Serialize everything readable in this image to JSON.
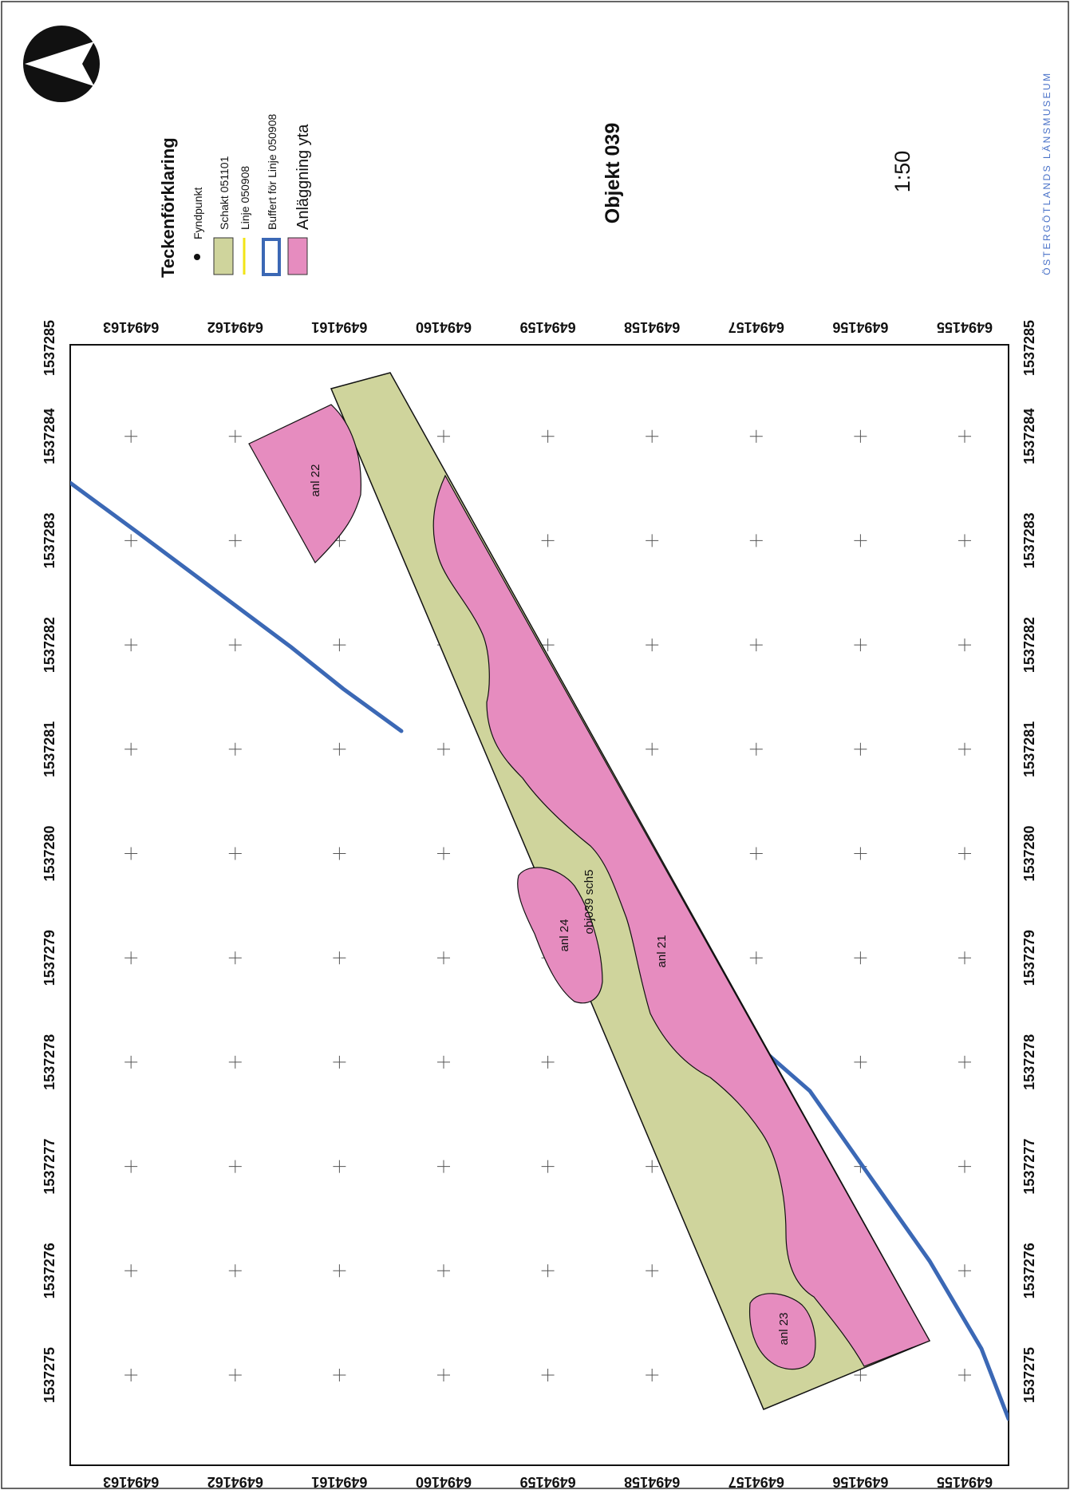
{
  "map": {
    "title": "Objekt 039",
    "scale": "1:50",
    "organisation": "ÖSTERGÖTLANDS LÄNSMUSEUM",
    "north_arrow": "north-arrow-icon",
    "x_ticks": [
      "1537275",
      "1537276",
      "1537277",
      "1537278",
      "1537279",
      "1537280",
      "1537281",
      "1537282",
      "1537283",
      "1537284",
      "1537285"
    ],
    "y_ticks": [
      "6494155",
      "6494156",
      "6494157",
      "6494158",
      "6494159",
      "6494160",
      "6494161",
      "6494162",
      "6494163"
    ],
    "colors": {
      "schakt": "#cfd49c",
      "anlaggning": "#e68cbf",
      "buffert": "#3b68b5",
      "linje": "#f2e416"
    }
  },
  "legend": {
    "title": "Teckenförklaring",
    "items": [
      {
        "label": "Fyndpunkt",
        "symbol": "dot"
      },
      {
        "label": "Schakt 051101",
        "symbol": "green-box"
      },
      {
        "label": "Linje 050908",
        "symbol": "yellow-line"
      },
      {
        "label": "Buffert för Linje 050908",
        "symbol": "blue-outline-box"
      },
      {
        "label": "Anläggning yta",
        "symbol": "pink-box"
      }
    ]
  },
  "features": {
    "anl_21": "anl 21",
    "anl_22": "anl 22",
    "anl_23": "anl 23",
    "anl_24": "anl 24",
    "schakt_label": "obj039 sch5"
  }
}
